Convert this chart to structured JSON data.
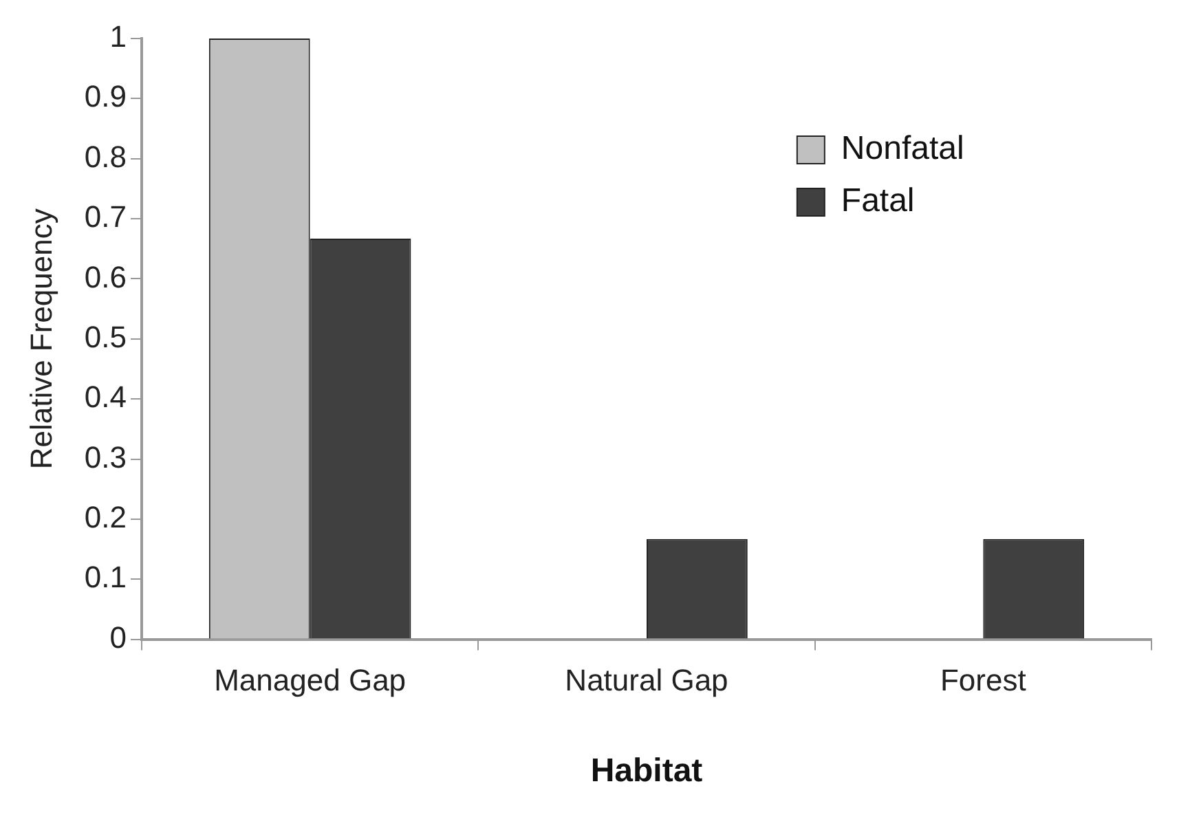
{
  "chart_data": {
    "type": "bar",
    "xlabel": "Habitat",
    "ylabel": "Relative Frequency",
    "categories": [
      "Managed Gap",
      "Natural Gap",
      "Forest"
    ],
    "series": [
      {
        "name": "Nonfatal",
        "color": "#c0c0c0",
        "values": [
          1,
          0,
          0
        ]
      },
      {
        "name": "Fatal",
        "color": "#404040",
        "values": [
          0.667,
          0.167,
          0.167
        ]
      }
    ],
    "ylim": [
      0,
      1
    ],
    "yticks": [
      0,
      0.1,
      0.2,
      0.3,
      0.4,
      0.5,
      0.6,
      0.7,
      0.8,
      0.9,
      1
    ],
    "grid": false,
    "legend": "top right"
  }
}
